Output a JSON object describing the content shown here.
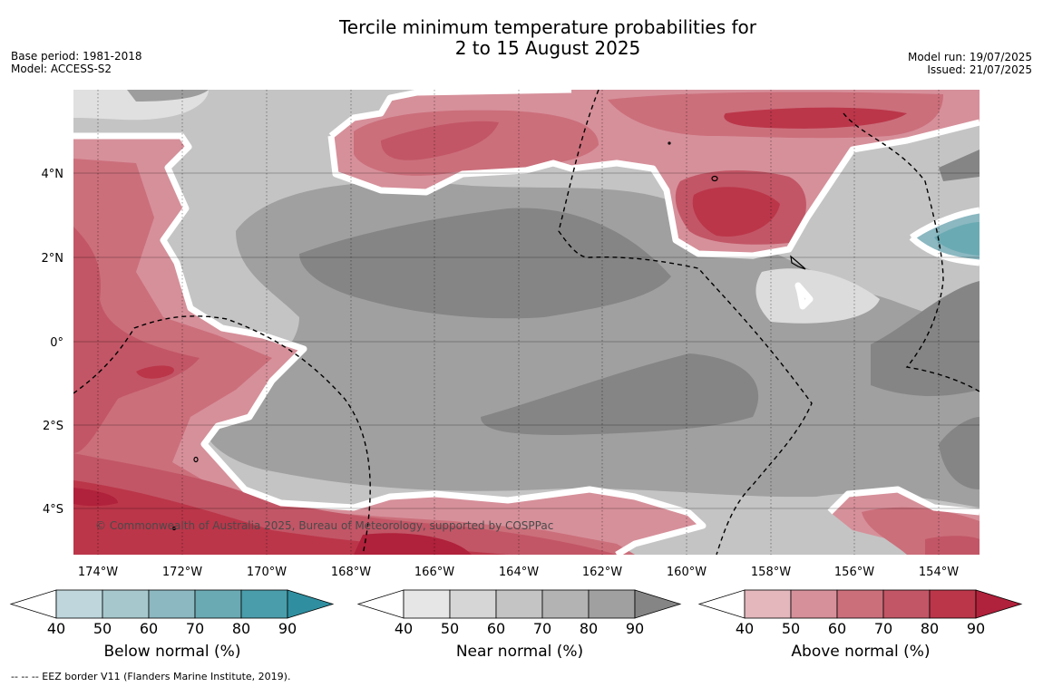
{
  "title": "Tercile minimum temperature probabilities for\n2 to 15 August 2025",
  "base_period": "Base period: 1981-2018",
  "model": "Model: ACCESS-S2",
  "model_run": "Model run: 19/07/2025",
  "issued": "Issued: 21/07/2025",
  "copyright": "© Commonwealth of Australia 2025, Bureau of Meteorology, supported by COSPPac",
  "footnote": "--  --  -- EEZ border V11 (Flanders Marine Institute, 2019).",
  "map": {
    "lon_labels": [
      "174°W",
      "172°W",
      "170°W",
      "168°W",
      "166°W",
      "164°W",
      "162°W",
      "160°W",
      "158°W",
      "156°W",
      "154°W"
    ],
    "lat_labels": [
      "4°N",
      "2°N",
      "0°",
      "2°S",
      "4°S"
    ]
  },
  "colorbars": [
    {
      "name": "below",
      "label": "Below normal (%)",
      "ticks": [
        "40",
        "50",
        "60",
        "70",
        "80",
        "90"
      ],
      "colors": [
        "#ffffff",
        "#bed6dc",
        "#a6c8cd",
        "#8bb8c1",
        "#6aaab3",
        "#4a9dab",
        "#2f8fa0"
      ]
    },
    {
      "name": "near",
      "label": "Near normal (%)",
      "ticks": [
        "40",
        "50",
        "60",
        "70",
        "80",
        "90"
      ],
      "colors": [
        "#ffffff",
        "#e6e6e6",
        "#d6d6d6",
        "#c4c4c4",
        "#b3b3b3",
        "#a0a0a0",
        "#858585"
      ]
    },
    {
      "name": "above",
      "label": "Above normal (%)",
      "ticks": [
        "40",
        "50",
        "60",
        "70",
        "80",
        "90"
      ],
      "colors": [
        "#ffffff",
        "#e4b7bc",
        "#d6909a",
        "#cb6f7b",
        "#c25666",
        "#bb3649",
        "#b0213b"
      ]
    }
  ]
}
